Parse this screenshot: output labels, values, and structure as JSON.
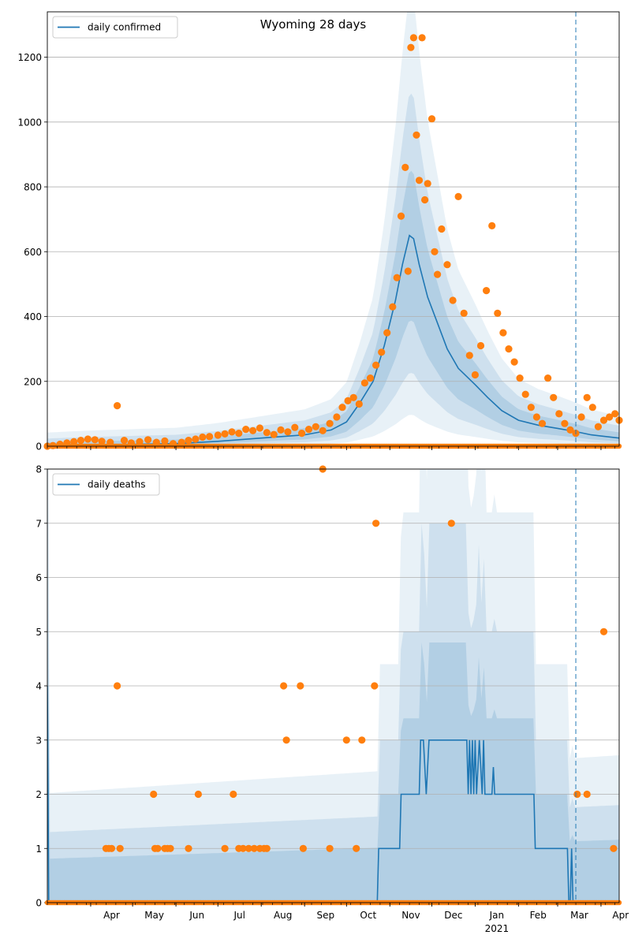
{
  "figure": {
    "title": "Wyoming 28 days",
    "colors": {
      "line": "#1f77b4",
      "band": "#1f77b4",
      "observed": "#ff7f0e",
      "grid": "#b0b0b0",
      "forecast_marker": "#1f77b4"
    }
  },
  "chart_data": [
    {
      "type": "line",
      "panel": "top",
      "title": "Wyoming 28 days",
      "xlabel": "",
      "ylabel": "",
      "legend": {
        "label": "daily confirmed",
        "placement": "upper-left"
      },
      "grid": "horizontal",
      "ylim": [
        0,
        1340
      ],
      "xlim": [
        "2020-03-01",
        "2021-04-14"
      ],
      "yticks": [
        "0",
        "200",
        "400",
        "600",
        "800",
        "1000",
        "1200"
      ],
      "xtick_labels": [
        "Apr",
        "May",
        "Jun",
        "Jul",
        "Aug",
        "Sep",
        "Oct",
        "Nov",
        "Dec",
        "Jan",
        "Feb",
        "Mar",
        "Apr"
      ],
      "year_label": "2021",
      "forecast_start": "2021-03-14",
      "series": [
        {
          "name": "daily confirmed",
          "kind": "model",
          "points": [
            [
              "2020-03-01",
              1
            ],
            [
              "2020-04-01",
              4
            ],
            [
              "2020-05-01",
              6
            ],
            [
              "2020-06-01",
              8
            ],
            [
              "2020-07-01",
              15
            ],
            [
              "2020-08-01",
              25
            ],
            [
              "2020-09-01",
              35
            ],
            [
              "2020-09-20",
              50
            ],
            [
              "2020-10-01",
              75
            ],
            [
              "2020-10-10",
              130
            ],
            [
              "2020-10-20",
              200
            ],
            [
              "2020-10-28",
              310
            ],
            [
              "2020-11-05",
              450
            ],
            [
              "2020-11-10",
              560
            ],
            [
              "2020-11-15",
              650
            ],
            [
              "2020-11-18",
              640
            ],
            [
              "2020-11-22",
              560
            ],
            [
              "2020-11-28",
              460
            ],
            [
              "2020-12-05",
              380
            ],
            [
              "2020-12-12",
              300
            ],
            [
              "2020-12-20",
              240
            ],
            [
              "2021-01-01",
              190
            ],
            [
              "2021-01-10",
              150
            ],
            [
              "2021-01-20",
              110
            ],
            [
              "2021-02-01",
              80
            ],
            [
              "2021-02-15",
              65
            ],
            [
              "2021-03-01",
              55
            ],
            [
              "2021-03-14",
              45
            ],
            [
              "2021-03-25",
              35
            ],
            [
              "2021-04-14",
              25
            ]
          ]
        },
        {
          "kind": "observed",
          "points": [
            [
              "2020-03-01",
              0
            ],
            [
              "2020-03-05",
              2
            ],
            [
              "2020-03-10",
              6
            ],
            [
              "2020-03-15",
              10
            ],
            [
              "2020-03-20",
              14
            ],
            [
              "2020-03-25",
              18
            ],
            [
              "2020-03-30",
              22
            ],
            [
              "2020-04-04",
              20
            ],
            [
              "2020-04-09",
              15
            ],
            [
              "2020-04-15",
              12
            ],
            [
              "2020-04-20",
              125
            ],
            [
              "2020-04-25",
              18
            ],
            [
              "2020-04-30",
              10
            ],
            [
              "2020-05-06",
              14
            ],
            [
              "2020-05-12",
              20
            ],
            [
              "2020-05-18",
              12
            ],
            [
              "2020-05-24",
              16
            ],
            [
              "2020-05-30",
              8
            ],
            [
              "2020-06-05",
              12
            ],
            [
              "2020-06-10",
              18
            ],
            [
              "2020-06-15",
              22
            ],
            [
              "2020-06-20",
              28
            ],
            [
              "2020-06-25",
              30
            ],
            [
              "2020-07-01",
              34
            ],
            [
              "2020-07-06",
              38
            ],
            [
              "2020-07-11",
              44
            ],
            [
              "2020-07-16",
              40
            ],
            [
              "2020-07-21",
              52
            ],
            [
              "2020-07-26",
              48
            ],
            [
              "2020-07-31",
              56
            ],
            [
              "2020-08-05",
              42
            ],
            [
              "2020-08-10",
              36
            ],
            [
              "2020-08-15",
              50
            ],
            [
              "2020-08-20",
              44
            ],
            [
              "2020-08-25",
              58
            ],
            [
              "2020-08-30",
              40
            ],
            [
              "2020-09-04",
              52
            ],
            [
              "2020-09-09",
              60
            ],
            [
              "2020-09-14",
              48
            ],
            [
              "2020-09-19",
              70
            ],
            [
              "2020-09-24",
              90
            ],
            [
              "2020-09-28",
              120
            ],
            [
              "2020-10-02",
              140
            ],
            [
              "2020-10-06",
              150
            ],
            [
              "2020-10-10",
              130
            ],
            [
              "2020-10-14",
              195
            ],
            [
              "2020-10-18",
              210
            ],
            [
              "2020-10-22",
              250
            ],
            [
              "2020-10-26",
              290
            ],
            [
              "2020-10-30",
              350
            ],
            [
              "2020-11-03",
              430
            ],
            [
              "2020-11-06",
              520
            ],
            [
              "2020-11-09",
              710
            ],
            [
              "2020-11-12",
              860
            ],
            [
              "2020-11-14",
              540
            ],
            [
              "2020-11-16",
              1230
            ],
            [
              "2020-11-18",
              1260
            ],
            [
              "2020-11-20",
              960
            ],
            [
              "2020-11-22",
              820
            ],
            [
              "2020-11-24",
              1260
            ],
            [
              "2020-11-26",
              760
            ],
            [
              "2020-11-28",
              810
            ],
            [
              "2020-12-01",
              1010
            ],
            [
              "2020-12-03",
              600
            ],
            [
              "2020-12-05",
              530
            ],
            [
              "2020-12-08",
              670
            ],
            [
              "2020-12-12",
              560
            ],
            [
              "2020-12-16",
              450
            ],
            [
              "2020-12-20",
              770
            ],
            [
              "2020-12-24",
              410
            ],
            [
              "2020-12-28",
              280
            ],
            [
              "2021-01-01",
              220
            ],
            [
              "2021-01-05",
              310
            ],
            [
              "2021-01-09",
              480
            ],
            [
              "2021-01-13",
              680
            ],
            [
              "2021-01-17",
              410
            ],
            [
              "2021-01-21",
              350
            ],
            [
              "2021-01-25",
              300
            ],
            [
              "2021-01-29",
              260
            ],
            [
              "2021-02-02",
              210
            ],
            [
              "2021-02-06",
              160
            ],
            [
              "2021-02-10",
              120
            ],
            [
              "2021-02-14",
              90
            ],
            [
              "2021-02-18",
              70
            ],
            [
              "2021-02-22",
              210
            ],
            [
              "2021-02-26",
              150
            ],
            [
              "2021-03-02",
              100
            ],
            [
              "2021-03-06",
              70
            ],
            [
              "2021-03-10",
              50
            ],
            [
              "2021-03-14",
              40
            ],
            [
              "2021-03-18",
              90
            ],
            [
              "2021-03-22",
              150
            ],
            [
              "2021-03-26",
              120
            ],
            [
              "2021-03-30",
              60
            ],
            [
              "2021-04-03",
              80
            ],
            [
              "2021-04-07",
              90
            ],
            [
              "2021-04-11",
              100
            ],
            [
              "2021-04-14",
              80
            ]
          ]
        }
      ]
    },
    {
      "type": "line",
      "panel": "bottom",
      "xlabel": "",
      "ylabel": "",
      "legend": {
        "label": "daily deaths",
        "placement": "upper-left"
      },
      "grid": "horizontal",
      "ylim": [
        0,
        8
      ],
      "xlim": [
        "2020-03-01",
        "2021-04-14"
      ],
      "yticks": [
        "0",
        "1",
        "2",
        "3",
        "4",
        "5",
        "6",
        "7",
        "8"
      ],
      "xtick_labels": [
        "Apr",
        "May",
        "Jun",
        "Jul",
        "Aug",
        "Sep",
        "Oct",
        "Nov",
        "Dec",
        "Jan",
        "Feb",
        "Mar",
        "Apr"
      ],
      "year_label": "2021",
      "forecast_start": "2021-03-14",
      "series": [
        {
          "name": "daily deaths",
          "kind": "model",
          "points": [
            [
              "2020-03-01",
              4
            ],
            [
              "2020-03-02",
              0
            ],
            [
              "2020-10-23",
              0
            ],
            [
              "2020-10-24",
              1
            ],
            [
              "2020-11-08",
              1
            ],
            [
              "2020-11-09",
              2
            ],
            [
              "2020-11-22",
              2
            ],
            [
              "2020-11-23",
              3
            ],
            [
              "2020-11-25",
              3
            ],
            [
              "2020-11-27",
              2
            ],
            [
              "2020-11-29",
              3
            ],
            [
              "2020-12-26",
              3
            ],
            [
              "2020-12-27",
              2
            ],
            [
              "2020-12-28",
              3
            ],
            [
              "2020-12-29",
              2
            ],
            [
              "2020-12-30",
              3
            ],
            [
              "2020-12-31",
              2
            ],
            [
              "2021-01-01",
              3
            ],
            [
              "2021-01-02",
              2
            ],
            [
              "2021-01-04",
              3
            ],
            [
              "2021-01-06",
              2
            ],
            [
              "2021-01-07",
              3
            ],
            [
              "2021-01-08",
              2
            ],
            [
              "2021-01-13",
              2
            ],
            [
              "2021-01-14",
              2.5
            ],
            [
              "2021-01-15",
              2
            ],
            [
              "2021-02-12",
              2
            ],
            [
              "2021-02-13",
              1
            ],
            [
              "2021-03-08",
              1
            ],
            [
              "2021-03-09",
              0
            ],
            [
              "2021-03-10",
              0
            ],
            [
              "2021-03-11",
              1
            ],
            [
              "2021-03-12",
              0
            ],
            [
              "2021-04-14",
              0
            ]
          ]
        },
        {
          "kind": "observed",
          "points": [
            [
              "2020-04-12",
              1
            ],
            [
              "2020-04-14",
              1
            ],
            [
              "2020-04-16",
              1
            ],
            [
              "2020-04-20",
              4
            ],
            [
              "2020-04-22",
              1
            ],
            [
              "2020-05-16",
              2
            ],
            [
              "2020-05-17",
              1
            ],
            [
              "2020-05-19",
              1
            ],
            [
              "2020-05-24",
              1
            ],
            [
              "2020-05-26",
              1
            ],
            [
              "2020-05-28",
              1
            ],
            [
              "2020-06-10",
              1
            ],
            [
              "2020-06-17",
              2
            ],
            [
              "2020-07-06",
              1
            ],
            [
              "2020-07-12",
              2
            ],
            [
              "2020-07-16",
              1
            ],
            [
              "2020-07-19",
              1
            ],
            [
              "2020-07-23",
              1
            ],
            [
              "2020-07-27",
              1
            ],
            [
              "2020-07-31",
              1
            ],
            [
              "2020-08-03",
              1
            ],
            [
              "2020-08-05",
              1
            ],
            [
              "2020-08-17",
              4
            ],
            [
              "2020-08-19",
              3
            ],
            [
              "2020-08-29",
              4
            ],
            [
              "2020-08-31",
              1
            ],
            [
              "2020-09-14",
              8
            ],
            [
              "2020-09-19",
              1
            ],
            [
              "2020-10-01",
              3
            ],
            [
              "2020-10-08",
              1
            ],
            [
              "2020-10-12",
              3
            ],
            [
              "2020-10-21",
              4
            ],
            [
              "2020-10-22",
              7
            ],
            [
              "2020-12-15",
              7
            ],
            [
              "2021-03-15",
              2
            ],
            [
              "2021-03-22",
              2
            ],
            [
              "2021-04-03",
              5
            ],
            [
              "2021-04-10",
              1
            ]
          ]
        }
      ]
    }
  ]
}
